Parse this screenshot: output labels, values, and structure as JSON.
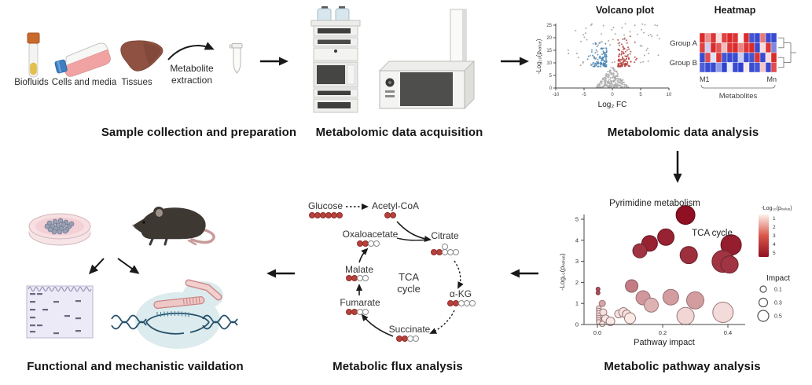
{
  "sections": {
    "sample": {
      "title": "Sample collection and preparation",
      "items": [
        "Biofluids",
        "Cells and media",
        "Tissues"
      ],
      "extraction_line1": "Metabolite",
      "extraction_line2": "extraction"
    },
    "acquisition": {
      "title": "Metabolomic data acquisition"
    },
    "analysis": {
      "title": "Metabolomic data analysis"
    },
    "pathway": {
      "title": "Metabolic pathway analysis"
    },
    "flux": {
      "title": "Metabolic flux analysis",
      "center_line1": "TCA",
      "center_line2": "cycle",
      "metabolites": [
        {
          "name": "Glucose",
          "filled": 6,
          "open": 0
        },
        {
          "name": "Acetyl-CoA",
          "filled": 2,
          "open": 0
        },
        {
          "name": "Oxaloacetate",
          "filled": 2,
          "open": 2
        },
        {
          "name": "Citrate",
          "filled": 2,
          "open": 3,
          "top_open": 1
        },
        {
          "name": "α-KG",
          "filled": 2,
          "open": 3
        },
        {
          "name": "Succinate",
          "filled": 2,
          "open": 2
        },
        {
          "name": "Fumarate",
          "filled": 2,
          "open": 2
        },
        {
          "name": "Malate",
          "filled": 2,
          "open": 2
        }
      ]
    },
    "validation": {
      "title": "Functional and mechanistic vaildation"
    }
  },
  "chart_data": [
    {
      "id": "volcano",
      "type": "scatter",
      "title": "Volcano plot",
      "xlabel": "Log₂ FC",
      "ylabel": "-Log₁₀(pᵥₐₗᵤₑ)",
      "xlim": [
        -10,
        10
      ],
      "ylim": [
        0,
        25
      ],
      "xticks": [
        "-10",
        "-5",
        "0",
        "5",
        "10"
      ],
      "yticks": [
        "0",
        "5",
        "10",
        "15",
        "20",
        "25"
      ],
      "clusters": [
        {
          "name": "downregulated",
          "color": "#4a85b4",
          "n": 120,
          "x": [
            -4.8,
            -1.0
          ],
          "y": [
            8.5,
            21
          ]
        },
        {
          "name": "upregulated",
          "color": "#b5413c",
          "n": 120,
          "x": [
            1.0,
            4.8
          ],
          "y": [
            8.5,
            21
          ]
        },
        {
          "name": "nonsignificant-scatter",
          "color": "#9c9c9c",
          "n": 70,
          "x": [
            -8.5,
            8.5
          ],
          "y": [
            9,
            25.5
          ]
        },
        {
          "name": "nonsignificant-cone",
          "color": "#ababab",
          "n": 240,
          "x": [
            -3,
            3
          ],
          "y": [
            0,
            9
          ]
        }
      ]
    },
    {
      "id": "heatmap",
      "type": "heatmap",
      "title": "Heatmap",
      "row_groups": [
        "Group A",
        "Group B"
      ],
      "col_start": "M1",
      "col_end": "Mn",
      "col_axis": "Metabolites",
      "palette": {
        "pos": "#d91f1f",
        "neg": "#2337cc"
      },
      "matrix": [
        [
          0.95,
          0.5,
          0.9,
          0.15,
          0.85,
          0.95,
          0.9,
          0.05,
          0.95,
          -0.85,
          -0.9,
          0.6,
          -0.9,
          -0.9
        ],
        [
          0.85,
          -0.25,
          0.95,
          0.75,
          0.3,
          0.9,
          0.95,
          0.55,
          0.9,
          0.95,
          -0.9,
          0.15,
          0.9,
          -0.6
        ],
        [
          -0.9,
          0.8,
          -0.15,
          0.9,
          -0.85,
          -0.9,
          -0.9,
          -0.25,
          -0.9,
          -0.85,
          0.9,
          -0.9,
          0.15,
          0.95
        ],
        [
          -0.8,
          -0.9,
          -0.9,
          -0.5,
          -0.95,
          -0.1,
          -0.9,
          -0.95,
          0.1,
          -0.9,
          -0.85,
          0.25,
          -0.9,
          0.8
        ]
      ]
    },
    {
      "id": "pathway-bubble",
      "type": "bubble",
      "xlabel": "Pathway impact",
      "ylabel": "-Log₁₀(pᵥₐₗᵤₑ)",
      "xticks": [
        "0.0",
        "0.2",
        "0.4"
      ],
      "yticks": [
        "0",
        "1",
        "2",
        "3",
        "4",
        "5"
      ],
      "annotations": [
        {
          "text": "Pyrimidine metabolism",
          "target": "highest bubble"
        },
        {
          "text": "TCA cycle",
          "target": "large dark bubble at right"
        }
      ],
      "points": [
        {
          "x": 0.27,
          "y": 5.2,
          "r": 12,
          "c": 5
        },
        {
          "x": 0.21,
          "y": 4.15,
          "r": 10.5,
          "c": 4.6
        },
        {
          "x": 0.16,
          "y": 3.85,
          "r": 10,
          "c": 4.6
        },
        {
          "x": 0.13,
          "y": 3.5,
          "r": 9,
          "c": 4.2
        },
        {
          "x": 0.28,
          "y": 3.3,
          "r": 11,
          "c": 4.3
        },
        {
          "x": 0.41,
          "y": 3.78,
          "r": 13,
          "c": 4.7
        },
        {
          "x": 0.385,
          "y": 3.0,
          "r": 14,
          "c": 4.2
        },
        {
          "x": 0.405,
          "y": 2.85,
          "r": 11,
          "c": 4.2
        },
        {
          "x": 0.105,
          "y": 1.83,
          "r": 8,
          "c": 2.6
        },
        {
          "x": 0.14,
          "y": 1.27,
          "r": 9,
          "c": 2.0
        },
        {
          "x": 0.165,
          "y": 0.92,
          "r": 9,
          "c": 1.4
        },
        {
          "x": 0.225,
          "y": 1.3,
          "r": 10,
          "c": 1.9
        },
        {
          "x": 0.3,
          "y": 1.15,
          "r": 11,
          "c": 1.9
        },
        {
          "x": 0.27,
          "y": 0.4,
          "r": 11,
          "c": 0.6
        },
        {
          "x": 0.385,
          "y": 0.58,
          "r": 13,
          "c": 0.5
        },
        {
          "x": 0.002,
          "y": 1.68,
          "r": 2.5,
          "c": 3.6
        },
        {
          "x": 0.002,
          "y": 1.5,
          "r": 2.5,
          "c": 3.6
        },
        {
          "x": 0.015,
          "y": 1.0,
          "r": 4,
          "c": 1.7
        },
        {
          "x": 0.004,
          "y": 0.78,
          "r": 3,
          "c": 0.4
        },
        {
          "x": 0.004,
          "y": 0.66,
          "r": 3,
          "c": 0.4
        },
        {
          "x": 0.004,
          "y": 0.55,
          "r": 3,
          "c": 0.4
        },
        {
          "x": 0.004,
          "y": 0.44,
          "r": 3,
          "c": 0.4
        },
        {
          "x": 0.004,
          "y": 0.33,
          "r": 3,
          "c": 0.4
        },
        {
          "x": 0.004,
          "y": 0.22,
          "r": 3,
          "c": 0.4
        },
        {
          "x": 0.004,
          "y": 0.12,
          "r": 3,
          "c": 0.4
        },
        {
          "x": 0.018,
          "y": 0.58,
          "r": 4.5,
          "c": 0.35
        },
        {
          "x": 0.025,
          "y": 0.27,
          "r": 5,
          "c": 0.25
        },
        {
          "x": 0.04,
          "y": 0.15,
          "r": 5.5,
          "c": 0.15
        },
        {
          "x": 0.015,
          "y": 0.03,
          "r": 3.5,
          "c": 0.2
        },
        {
          "x": 0.065,
          "y": 0.5,
          "r": 5,
          "c": 0.3
        },
        {
          "x": 0.08,
          "y": 0.58,
          "r": 6,
          "c": 0.35
        },
        {
          "x": 0.09,
          "y": 0.48,
          "r": 5.5,
          "c": 0.3
        },
        {
          "x": 0.1,
          "y": 0.3,
          "r": 7,
          "c": 0.15
        }
      ],
      "legend": {
        "color_title": "-Log₁₀(pᵥₐₗᵤₑ)",
        "color_ticks": [
          "1",
          "2",
          "3",
          "4",
          "5"
        ],
        "color_range": [
          "#fdf1ec",
          "#8e1022"
        ],
        "impact_title": "Impact",
        "impact_items": [
          {
            "label": "0.1",
            "r": 4
          },
          {
            "label": "0.3",
            "r": 5.5
          },
          {
            "label": "0.5",
            "r": 7
          }
        ]
      }
    }
  ],
  "colors": {
    "flux_filled_dot": "#b8423b",
    "arrow": "#1a1a1a",
    "volcano_blue": "#4a85b4",
    "volcano_red": "#b5413c"
  }
}
